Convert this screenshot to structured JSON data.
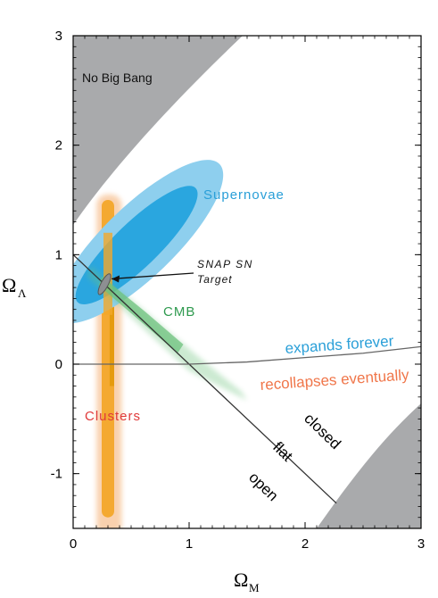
{
  "chart_data": {
    "type": "scatter",
    "title": "",
    "xlabel": "Ω",
    "xlabel_sub": "M",
    "ylabel": "Ω",
    "ylabel_sub": "Λ",
    "xlim": [
      0,
      3
    ],
    "ylim": [
      -1.5,
      3
    ],
    "x_ticks": [
      0,
      1,
      2,
      3
    ],
    "y_ticks": [
      -1,
      0,
      1,
      2,
      3
    ],
    "x_tick_labels": [
      "0",
      "1",
      "2",
      "3"
    ],
    "y_tick_labels": [
      "-1",
      "0",
      "1",
      "2",
      "3"
    ],
    "grid": false,
    "colors": {
      "supernovae_outer": "#8ecfee",
      "supernovae_inner": "#2aa6df",
      "clusters_outer": "#f8c9a0",
      "clusters_inner": "#f3a72a",
      "clusters_core": "#e59b0e",
      "cmb": "#6dc27d",
      "no_big_bang": "#a9aaac",
      "expands_label": "#2a9fd8",
      "recollapses_label": "#f0764a",
      "clusters_label": "#e03a3a",
      "supernovae_label": "#2a9fd8",
      "cmb_label": "#2f9a4f"
    },
    "regions": [
      {
        "name": "No Big Bang",
        "label": "No Big Bang",
        "label_at": [
          0.1,
          2.6
        ]
      },
      {
        "name": "closed/open corner",
        "label": ""
      }
    ],
    "contours": [
      {
        "name": "Supernovae",
        "label": "Supernovae",
        "center": [
          0.57,
          1.1
        ],
        "label_at": [
          1.12,
          1.52
        ]
      },
      {
        "name": "Clusters",
        "label": "Clusters",
        "center": [
          0.33,
          0.3
        ],
        "label_at": [
          0.05,
          -0.47
        ]
      },
      {
        "name": "CMB",
        "label": "CMB",
        "center": [
          0.8,
          0.3
        ],
        "label_at": [
          0.77,
          0.47
        ]
      },
      {
        "name": "SNAP SN Target",
        "label_lines": [
          "SNAP SN",
          "Target"
        ],
        "center": [
          0.27,
          0.73
        ]
      }
    ],
    "lines": [
      {
        "name": "flat",
        "label": "flat",
        "points": [
          [
            0,
            1
          ],
          [
            2.27,
            -1.27
          ]
        ]
      },
      {
        "name": "expands-recollapse boundary",
        "points": [
          [
            0,
            0
          ],
          [
            1,
            0
          ],
          [
            1.5,
            0.02
          ],
          [
            2,
            0.06
          ],
          [
            2.5,
            0.1
          ],
          [
            3,
            0.16
          ]
        ]
      }
    ],
    "annotations": {
      "expands_forever": "expands forever",
      "recollapses_eventually": "recollapses eventually",
      "closed": "closed",
      "flat": "flat",
      "open": "open"
    }
  }
}
